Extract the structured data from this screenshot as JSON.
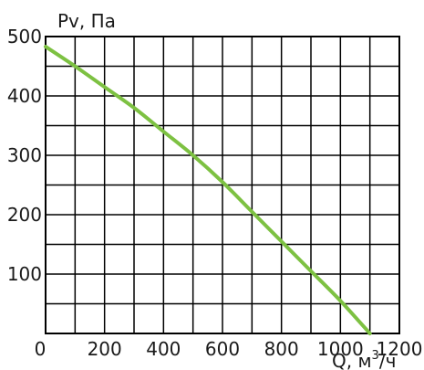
{
  "chart_data": {
    "type": "line",
    "ylabel": "Pv, Па",
    "xlabel_main": "Q, м",
    "xlabel_sup": "3",
    "xlabel_end": "/ч",
    "xlim": [
      0,
      1200
    ],
    "ylim": [
      0,
      500
    ],
    "grid": true,
    "x_ticks": [
      "0",
      "200",
      "400",
      "600",
      "800",
      "1000",
      "1200"
    ],
    "y_ticks": [
      "100",
      "200",
      "300",
      "400",
      "500"
    ],
    "series": [
      {
        "color": "#7dc142",
        "x": [
          0,
          100,
          200,
          300,
          400,
          500,
          600,
          700,
          800,
          900,
          1000,
          1100
        ],
        "y": [
          483,
          450,
          415,
          380,
          340,
          300,
          255,
          205,
          155,
          105,
          55,
          0
        ]
      }
    ]
  }
}
